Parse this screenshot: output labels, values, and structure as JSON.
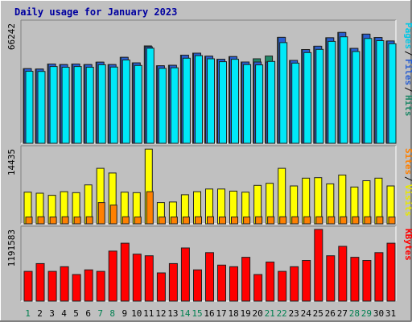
{
  "chart_data": {
    "type": "bar",
    "title": "Daily usage for January 2023",
    "categories": [
      "1",
      "2",
      "3",
      "4",
      "5",
      "6",
      "7",
      "8",
      "9",
      "10",
      "11",
      "12",
      "13",
      "14",
      "15",
      "16",
      "17",
      "18",
      "19",
      "20",
      "21",
      "22",
      "23",
      "24",
      "25",
      "26",
      "27",
      "28",
      "29",
      "30",
      "31"
    ],
    "weekend_days": [
      "1",
      "7",
      "8",
      "14",
      "15",
      "21",
      "22",
      "28",
      "29"
    ],
    "panels": [
      {
        "name": "hits-files-pages",
        "ylim": [
          0,
          66242
        ],
        "max_tick_label": "66242",
        "side_labels": [
          {
            "text": "Pages",
            "color": "#00c8e6"
          },
          {
            "text": "Files",
            "color": "#2a5fd0"
          },
          {
            "text": "Hits",
            "color": "#208868"
          }
        ],
        "series": [
          {
            "name": "Hits",
            "color": "#208868",
            "values": [
              41200,
              41000,
              43800,
              43500,
              43800,
              43500,
              44800,
              43500,
              47500,
              44400,
              53800,
              42800,
              43100,
              48700,
              49800,
              48100,
              46400,
              47900,
              44900,
              46700,
              48200,
              58500,
              45800,
              51800,
              53600,
              58300,
              61200,
              52400,
              60300,
              58400,
              56500
            ]
          },
          {
            "name": "Files",
            "color": "#2a5fd0",
            "values": [
              41200,
              41000,
              43800,
              43500,
              43800,
              43500,
              44800,
              43500,
              47500,
              44400,
              53300,
              42800,
              43100,
              48700,
              49800,
              48100,
              46400,
              47900,
              44900,
              44900,
              44900,
              58500,
              45800,
              51800,
              53600,
              58300,
              61200,
              52400,
              60300,
              58400,
              56500
            ]
          },
          {
            "name": "Pages",
            "color": "#00e8f8",
            "values": [
              39800,
              39700,
              42400,
              42000,
              42400,
              42000,
              43400,
              42100,
              46000,
              43000,
              52500,
              41400,
              41700,
              47000,
              48400,
              46700,
              45100,
              46400,
              43500,
              43300,
              45200,
              55600,
              44300,
              50100,
              51900,
              56300,
              58800,
              50700,
              57900,
              56700,
              55000
            ]
          }
        ]
      },
      {
        "name": "visits-sites",
        "ylim": [
          0,
          14435
        ],
        "max_tick_label": "14435",
        "side_labels": [
          {
            "text": "Sites",
            "color": "#ff8000"
          },
          {
            "text": "Visits",
            "color": "#e8e800"
          }
        ],
        "series": [
          {
            "name": "Visits",
            "color": "#ffff00",
            "values": [
              6100,
              5900,
              5500,
              6200,
              6000,
              7500,
              10700,
              9800,
              6100,
              6000,
              14400,
              4100,
              4200,
              5600,
              6200,
              6700,
              6700,
              6300,
              6100,
              7400,
              7800,
              10700,
              7300,
              8800,
              8900,
              7700,
              9400,
              7100,
              8300,
              8800,
              7300
            ]
          },
          {
            "name": "Sites",
            "color": "#ff8000",
            "values": [
              1300,
              1350,
              1300,
              1350,
              1300,
              1350,
              4100,
              3600,
              1350,
              1300,
              6200,
              1300,
              1300,
              1300,
              1350,
              1350,
              1300,
              1300,
              1300,
              1350,
              1350,
              1350,
              1350,
              1350,
              1350,
              1350,
              1350,
              1350,
              1350,
              1350,
              1300
            ]
          }
        ]
      },
      {
        "name": "kbytes",
        "ylim": [
          0,
          1191583
        ],
        "max_tick_label": "1191583",
        "side_labels": [
          {
            "text": "KBytes",
            "color": "#ff0000"
          }
        ],
        "series": [
          {
            "name": "KBytes",
            "color": "#ff0000",
            "values": [
              494000,
              624000,
              494000,
              572000,
              442000,
              520000,
              494000,
              832000,
              962000,
              780000,
              754000,
              468000,
              624000,
              884000,
              520000,
              806000,
              598000,
              572000,
              728000,
              442000,
              650000,
              494000,
              572000,
              676000,
              1191000,
              754000,
              910000,
              728000,
              676000,
              806000,
              962000
            ]
          }
        ]
      }
    ]
  }
}
